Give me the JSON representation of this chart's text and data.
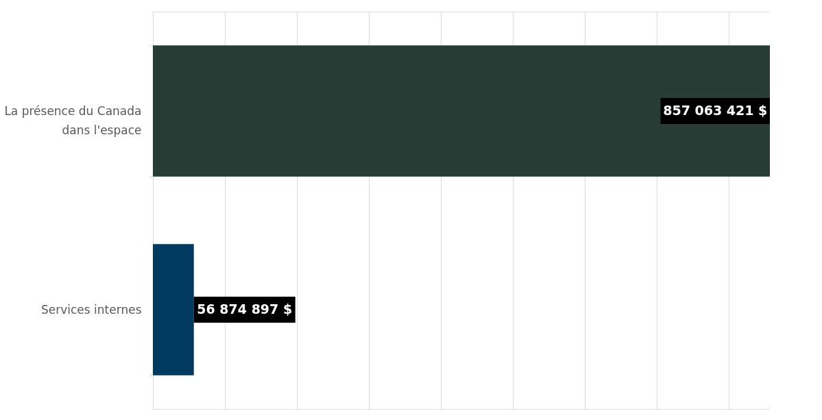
{
  "chart_data": {
    "type": "bar",
    "orientation": "horizontal",
    "categories": [
      "La présence du Canada dans l'espace",
      "Services internes"
    ],
    "values": [
      857063421,
      56874897
    ],
    "colors": [
      "#263c35",
      "#003a60"
    ],
    "value_labels": [
      "857 063 421 $",
      "56 874 897 $"
    ],
    "xlim": [
      0,
      857063421
    ],
    "xticks": [
      {
        "value": 0,
        "label": null
      },
      {
        "value": 100000000,
        "label": null
      },
      {
        "value": 200000000,
        "label": null
      },
      {
        "value": 300000000,
        "label": null
      },
      {
        "value": 400000000,
        "label": null
      },
      {
        "value": 500000000,
        "label": null
      },
      {
        "value": 600000000,
        "label": null
      },
      {
        "value": 700000000,
        "label": null
      },
      {
        "value": 800000000,
        "label": null
      }
    ],
    "grid": "x",
    "tick_labels": "y"
  }
}
